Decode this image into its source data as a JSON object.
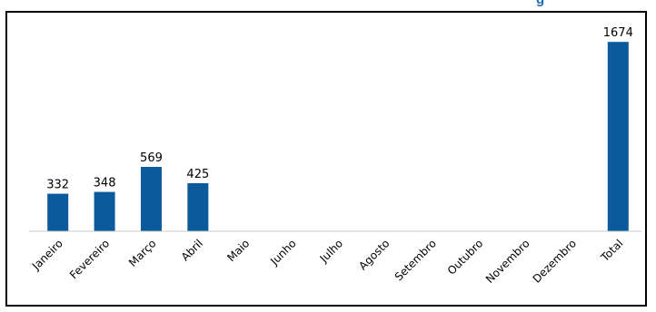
{
  "chart_data": {
    "type": "bar",
    "categories": [
      "Janeiro",
      "Fevereiro",
      "Março",
      "Abril",
      "Maio",
      "Junho",
      "Julho",
      "Agosto",
      "Setembro",
      "Outubro",
      "Novembro",
      "Dezembro",
      "Total"
    ],
    "values": [
      332,
      348,
      569,
      425,
      null,
      null,
      null,
      null,
      null,
      null,
      null,
      null,
      1674
    ],
    "title": "",
    "xlabel": "",
    "ylabel": "",
    "ylim": [
      0,
      1900
    ],
    "grid": false,
    "legend": "none",
    "bar_color": "#0a5a9c"
  },
  "clipped_title_fragment": "g"
}
